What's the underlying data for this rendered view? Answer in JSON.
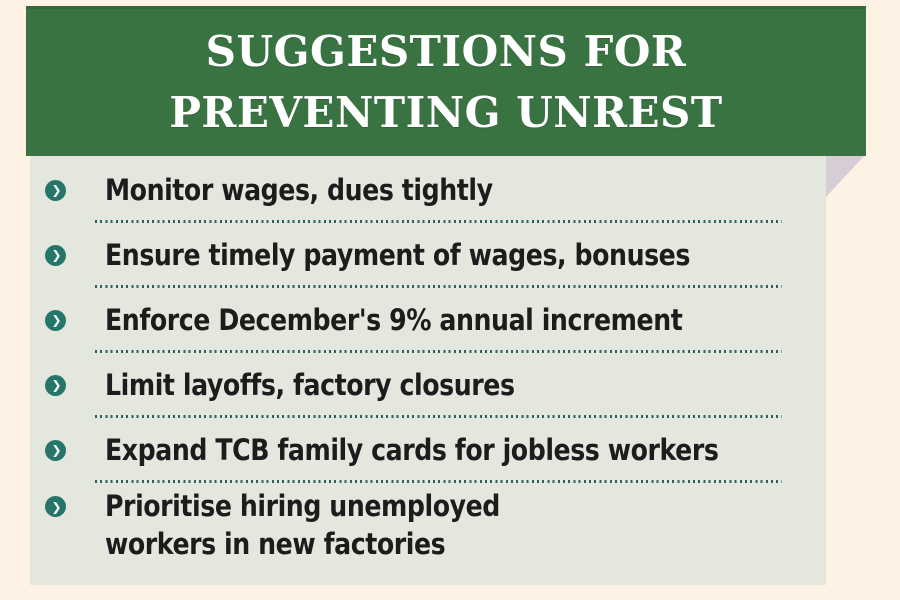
{
  "page": {
    "background_color": "#fdf2e3"
  },
  "header": {
    "title_line1": "SUGGESTIONS FOR",
    "title_line2": "PREVENTING UNREST",
    "background_color": "#3a7342",
    "text_color": "#ffffff"
  },
  "list": {
    "background_color": "#e3e7de",
    "bullet_color": "#26756b",
    "bullet_glyph": "❯",
    "separator_color": "#2f6060",
    "fold_color": "#d6ced4",
    "text_color": "#1c1c1c",
    "items": [
      "Monitor wages, dues tightly",
      "Ensure timely payment of wages, bonuses",
      "Enforce December's 9% annual increment",
      "Limit layoffs, factory closures",
      "Expand TCB family cards for jobless workers",
      "Prioritise hiring unemployed\nworkers in new factories"
    ]
  }
}
